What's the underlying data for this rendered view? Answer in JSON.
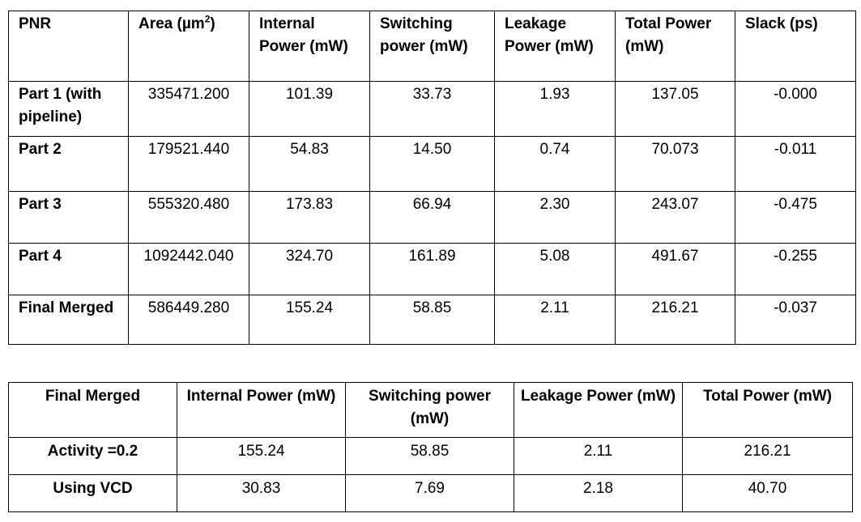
{
  "table1": {
    "headers": {
      "pnr": "PNR",
      "area_prefix": "Area (µm",
      "area_sup": "2",
      "area_suffix": ")",
      "internal": "Internal Power (mW)",
      "switching": "Switching power (mW)",
      "leakage": "Leakage Power (mW)",
      "total": "Total Power (mW)",
      "slack": "Slack (ps)"
    },
    "rows": [
      {
        "label": "Part 1 (with pipeline)",
        "area": "335471.200",
        "internal": "101.39",
        "switching": "33.73",
        "leakage": "1.93",
        "total": "137.05",
        "slack": "-0.000"
      },
      {
        "label": "Part 2",
        "area": "179521.440",
        "internal": "54.83",
        "switching": "14.50",
        "leakage": "0.74",
        "total": "70.073",
        "slack": "-0.011"
      },
      {
        "label": "Part 3",
        "area": "555320.480",
        "internal": "173.83",
        "switching": "66.94",
        "leakage": "2.30",
        "total": "243.07",
        "slack": "-0.475"
      },
      {
        "label": "Part 4",
        "area": "1092442.040",
        "internal": "324.70",
        "switching": "161.89",
        "leakage": "5.08",
        "total": "491.67",
        "slack": "-0.255"
      },
      {
        "label": "Final Merged",
        "area": "586449.280",
        "internal": "155.24",
        "switching": "58.85",
        "leakage": "2.11",
        "total": "216.21",
        "slack": "-0.037"
      }
    ]
  },
  "table2": {
    "headers": {
      "name": "Final Merged",
      "internal": "Internal Power (mW)",
      "switching": "Switching power (mW)",
      "leakage": "Leakage Power (mW)",
      "total": "Total Power (mW)"
    },
    "rows": [
      {
        "label": "Activity =0.2",
        "internal": "155.24",
        "switching": "58.85",
        "leakage": "2.11",
        "total": "216.21"
      },
      {
        "label": "Using VCD",
        "internal": "30.83",
        "switching": "7.69",
        "leakage": "2.18",
        "total": "40.70"
      }
    ]
  }
}
